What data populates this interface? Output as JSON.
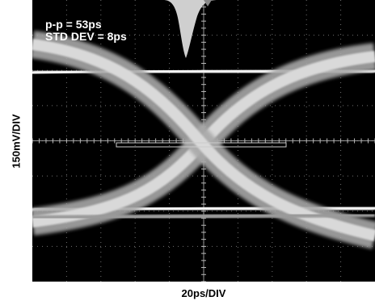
{
  "chart_data": {
    "type": "eye-diagram",
    "title": "",
    "xlabel": "20ps/DIV",
    "ylabel": "150mV/DIV",
    "annotations": [
      "p-p = 53ps",
      "STD DEV = 8ps"
    ],
    "grid": true,
    "divisions": {
      "x": 10,
      "y": 8
    },
    "colors": {
      "background": "#000000",
      "trace": "#d8d8d8",
      "grid": "#bbbbbb",
      "histogram": "#c8c8c8"
    }
  }
}
